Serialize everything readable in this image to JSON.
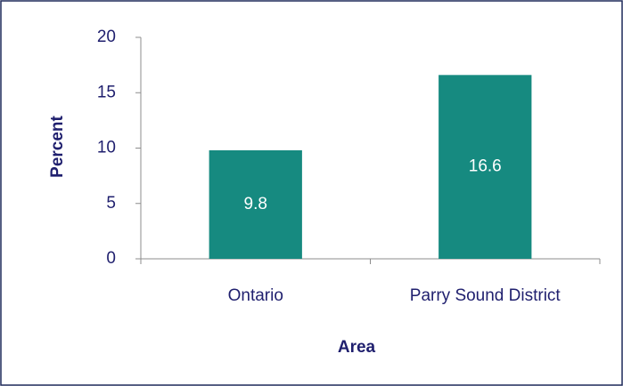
{
  "chart_data": {
    "type": "bar",
    "xlabel": "Area",
    "ylabel": "Percent",
    "categories": [
      "Ontario",
      "Parry Sound District"
    ],
    "values": [
      9.8,
      16.6
    ],
    "color": "#168a80",
    "ylim": [
      0,
      20
    ],
    "yticks": [
      0,
      5,
      10,
      15,
      20
    ],
    "grid": false
  }
}
